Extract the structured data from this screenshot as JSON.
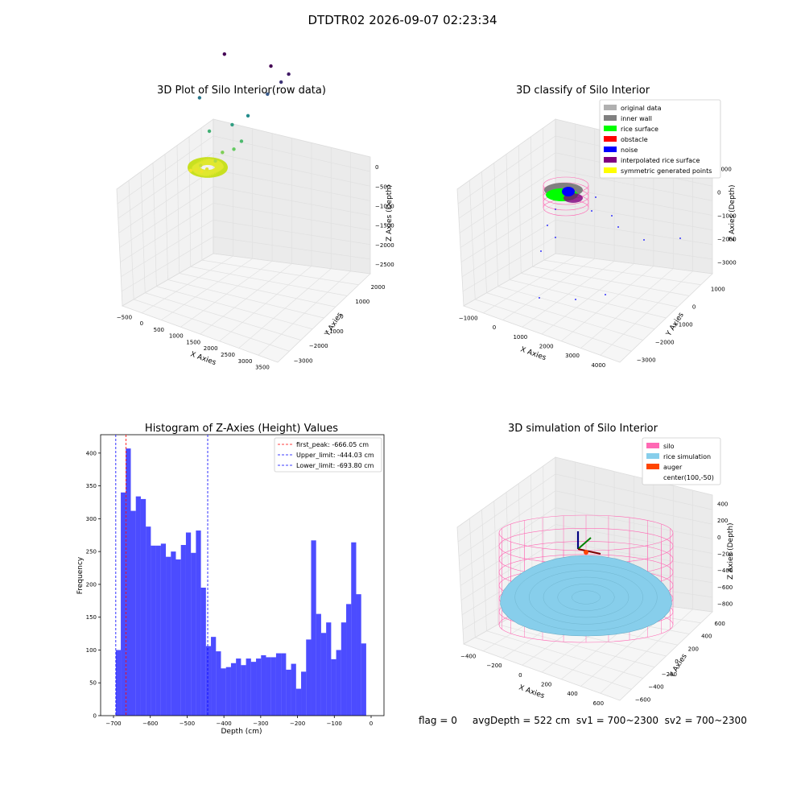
{
  "suptitle": "DTDTR02 2026-09-07 02:23:34",
  "footer": "flag = 0     avgDepth = 522 cm  sv1 = 700~2300  sv2 = 700~2300",
  "colors": {
    "grid": "#e0e0e0",
    "pane": "#f2f2f2",
    "hist": "#0000ff",
    "first_peak": "#ff0000",
    "limits": "#0000ff",
    "silo": "#ff69b4",
    "rice": "#87ceeb",
    "auger": "#ff4500"
  },
  "chart_data": [
    {
      "type": "scatter",
      "subtype": "3d",
      "title": "3D Plot of Silo Interior(row data)",
      "xlabel": "X Axies",
      "ylabel": "Y Axies",
      "zlabel": "Z Axies (Depth)",
      "xticks": [
        "−500",
        "0",
        "500",
        "1000",
        "1500",
        "2000",
        "2500",
        "3000",
        "3500"
      ],
      "yticks": [
        "−3000",
        "−2000",
        "−1000",
        "0",
        "1000",
        "2000"
      ],
      "zticks": [
        "−2500",
        "−2000",
        "−1500",
        "−1000",
        "−500",
        "0"
      ],
      "colormap": "viridis",
      "points": [
        {
          "x": 300,
          "y": -100,
          "z": -50
        },
        {
          "x": 500,
          "y": 0,
          "z": -80
        },
        {
          "x": 700,
          "y": 100,
          "z": -60
        },
        {
          "x": 900,
          "y": 200,
          "z": -120
        },
        {
          "x": 600,
          "y": -300,
          "z": -200
        },
        {
          "x": 1200,
          "y": 300,
          "z": -300
        },
        {
          "x": 1400,
          "y": 100,
          "z": -500
        },
        {
          "x": 1800,
          "y": 200,
          "z": -600
        },
        {
          "x": 2000,
          "y": -100,
          "z": -800
        },
        {
          "x": 800,
          "y": -800,
          "z": -900
        },
        {
          "x": 1600,
          "y": -600,
          "z": -1100
        },
        {
          "x": 2200,
          "y": -200,
          "z": -1300
        },
        {
          "x": 400,
          "y": -1200,
          "z": -1500
        },
        {
          "x": 2800,
          "y": -500,
          "z": -1800
        },
        {
          "x": 3200,
          "y": -800,
          "z": -2100
        },
        {
          "x": 3400,
          "y": -1100,
          "z": -2300
        },
        {
          "x": 1000,
          "y": -2500,
          "z": -2500
        },
        {
          "x": 2500,
          "y": -2800,
          "z": -2500
        }
      ]
    },
    {
      "type": "scatter",
      "subtype": "3d",
      "title": "3D classify of Silo Interior",
      "xlabel": "X Axies",
      "ylabel": "Y Axies",
      "zlabel": "Z Axies (Depth)",
      "xticks": [
        "−1000",
        "0",
        "1000",
        "2000",
        "3000",
        "4000"
      ],
      "yticks": [
        "−3000",
        "−2000",
        "−1000",
        "0",
        "1000"
      ],
      "zticks": [
        "−3000",
        "−2000",
        "−1000",
        "0",
        "1000"
      ],
      "legend_position": "top-right",
      "legend": [
        {
          "label": "original data",
          "color": "#b0b0b0"
        },
        {
          "label": "inner wall",
          "color": "#808080"
        },
        {
          "label": "rice surface",
          "color": "#00ff00"
        },
        {
          "label": "obstacle",
          "color": "#ff0000"
        },
        {
          "label": "noise",
          "color": "#0000ff"
        },
        {
          "label": "interpolated rice surface",
          "color": "#800080"
        },
        {
          "label": "symmetric generated points",
          "color": "#ffff00"
        }
      ]
    },
    {
      "type": "bar",
      "subtype": "histogram",
      "title": "Histogram of Z-Axies (Height) Values",
      "xlabel": "Depth (cm)",
      "ylabel": "Frequency",
      "xlim": [
        -735,
        35
      ],
      "ylim": [
        0,
        428
      ],
      "xticks": [
        -700,
        -600,
        -500,
        -400,
        -300,
        -200,
        -100,
        0
      ],
      "yticks": [
        0,
        50,
        100,
        150,
        200,
        250,
        300,
        350,
        400
      ],
      "bin_start": -693.8,
      "bin_width": 13.61,
      "values": [
        100,
        340,
        407,
        312,
        334,
        330,
        288,
        259,
        259,
        262,
        242,
        250,
        238,
        260,
        279,
        248,
        282,
        195,
        106,
        120,
        98,
        72,
        74,
        80,
        87,
        77,
        87,
        82,
        87,
        92,
        89,
        89,
        95,
        95,
        70,
        79,
        41,
        67,
        116,
        267,
        155,
        126,
        142,
        86,
        100,
        142,
        170,
        264,
        185,
        110
      ],
      "vlines": [
        {
          "label": "first_peak: -666.05 cm",
          "x": -666.05,
          "color": "#ff0000"
        },
        {
          "label": "Upper_limit: -444.03 cm",
          "x": -444.03,
          "color": "#0000ff"
        },
        {
          "label": "Lower_limit: -693.80 cm",
          "x": -693.8,
          "color": "#0000ff"
        }
      ],
      "legend_position": "top-right"
    },
    {
      "type": "scatter",
      "subtype": "3d-surface",
      "title": "3D simulation of Silo Interior",
      "xlabel": "X Axies",
      "ylabel": "Y Axies",
      "zlabel": "Z Axies (Depth)",
      "xticks": [
        "−400",
        "−200",
        "0",
        "200",
        "400",
        "600"
      ],
      "yticks": [
        "−600",
        "−400",
        "−200",
        "0",
        "200",
        "400",
        "600"
      ],
      "zticks": [
        "−800",
        "−600",
        "−400",
        "−200",
        "0",
        "200",
        "400"
      ],
      "legend_position": "top-right",
      "legend": [
        {
          "label": "silo",
          "color": "#ff69b4"
        },
        {
          "label": "rice simulation",
          "color": "#87ceeb"
        },
        {
          "label": "auger",
          "color": "#ff4500"
        },
        {
          "label": "center(100,-50)",
          "color": ""
        }
      ]
    }
  ]
}
